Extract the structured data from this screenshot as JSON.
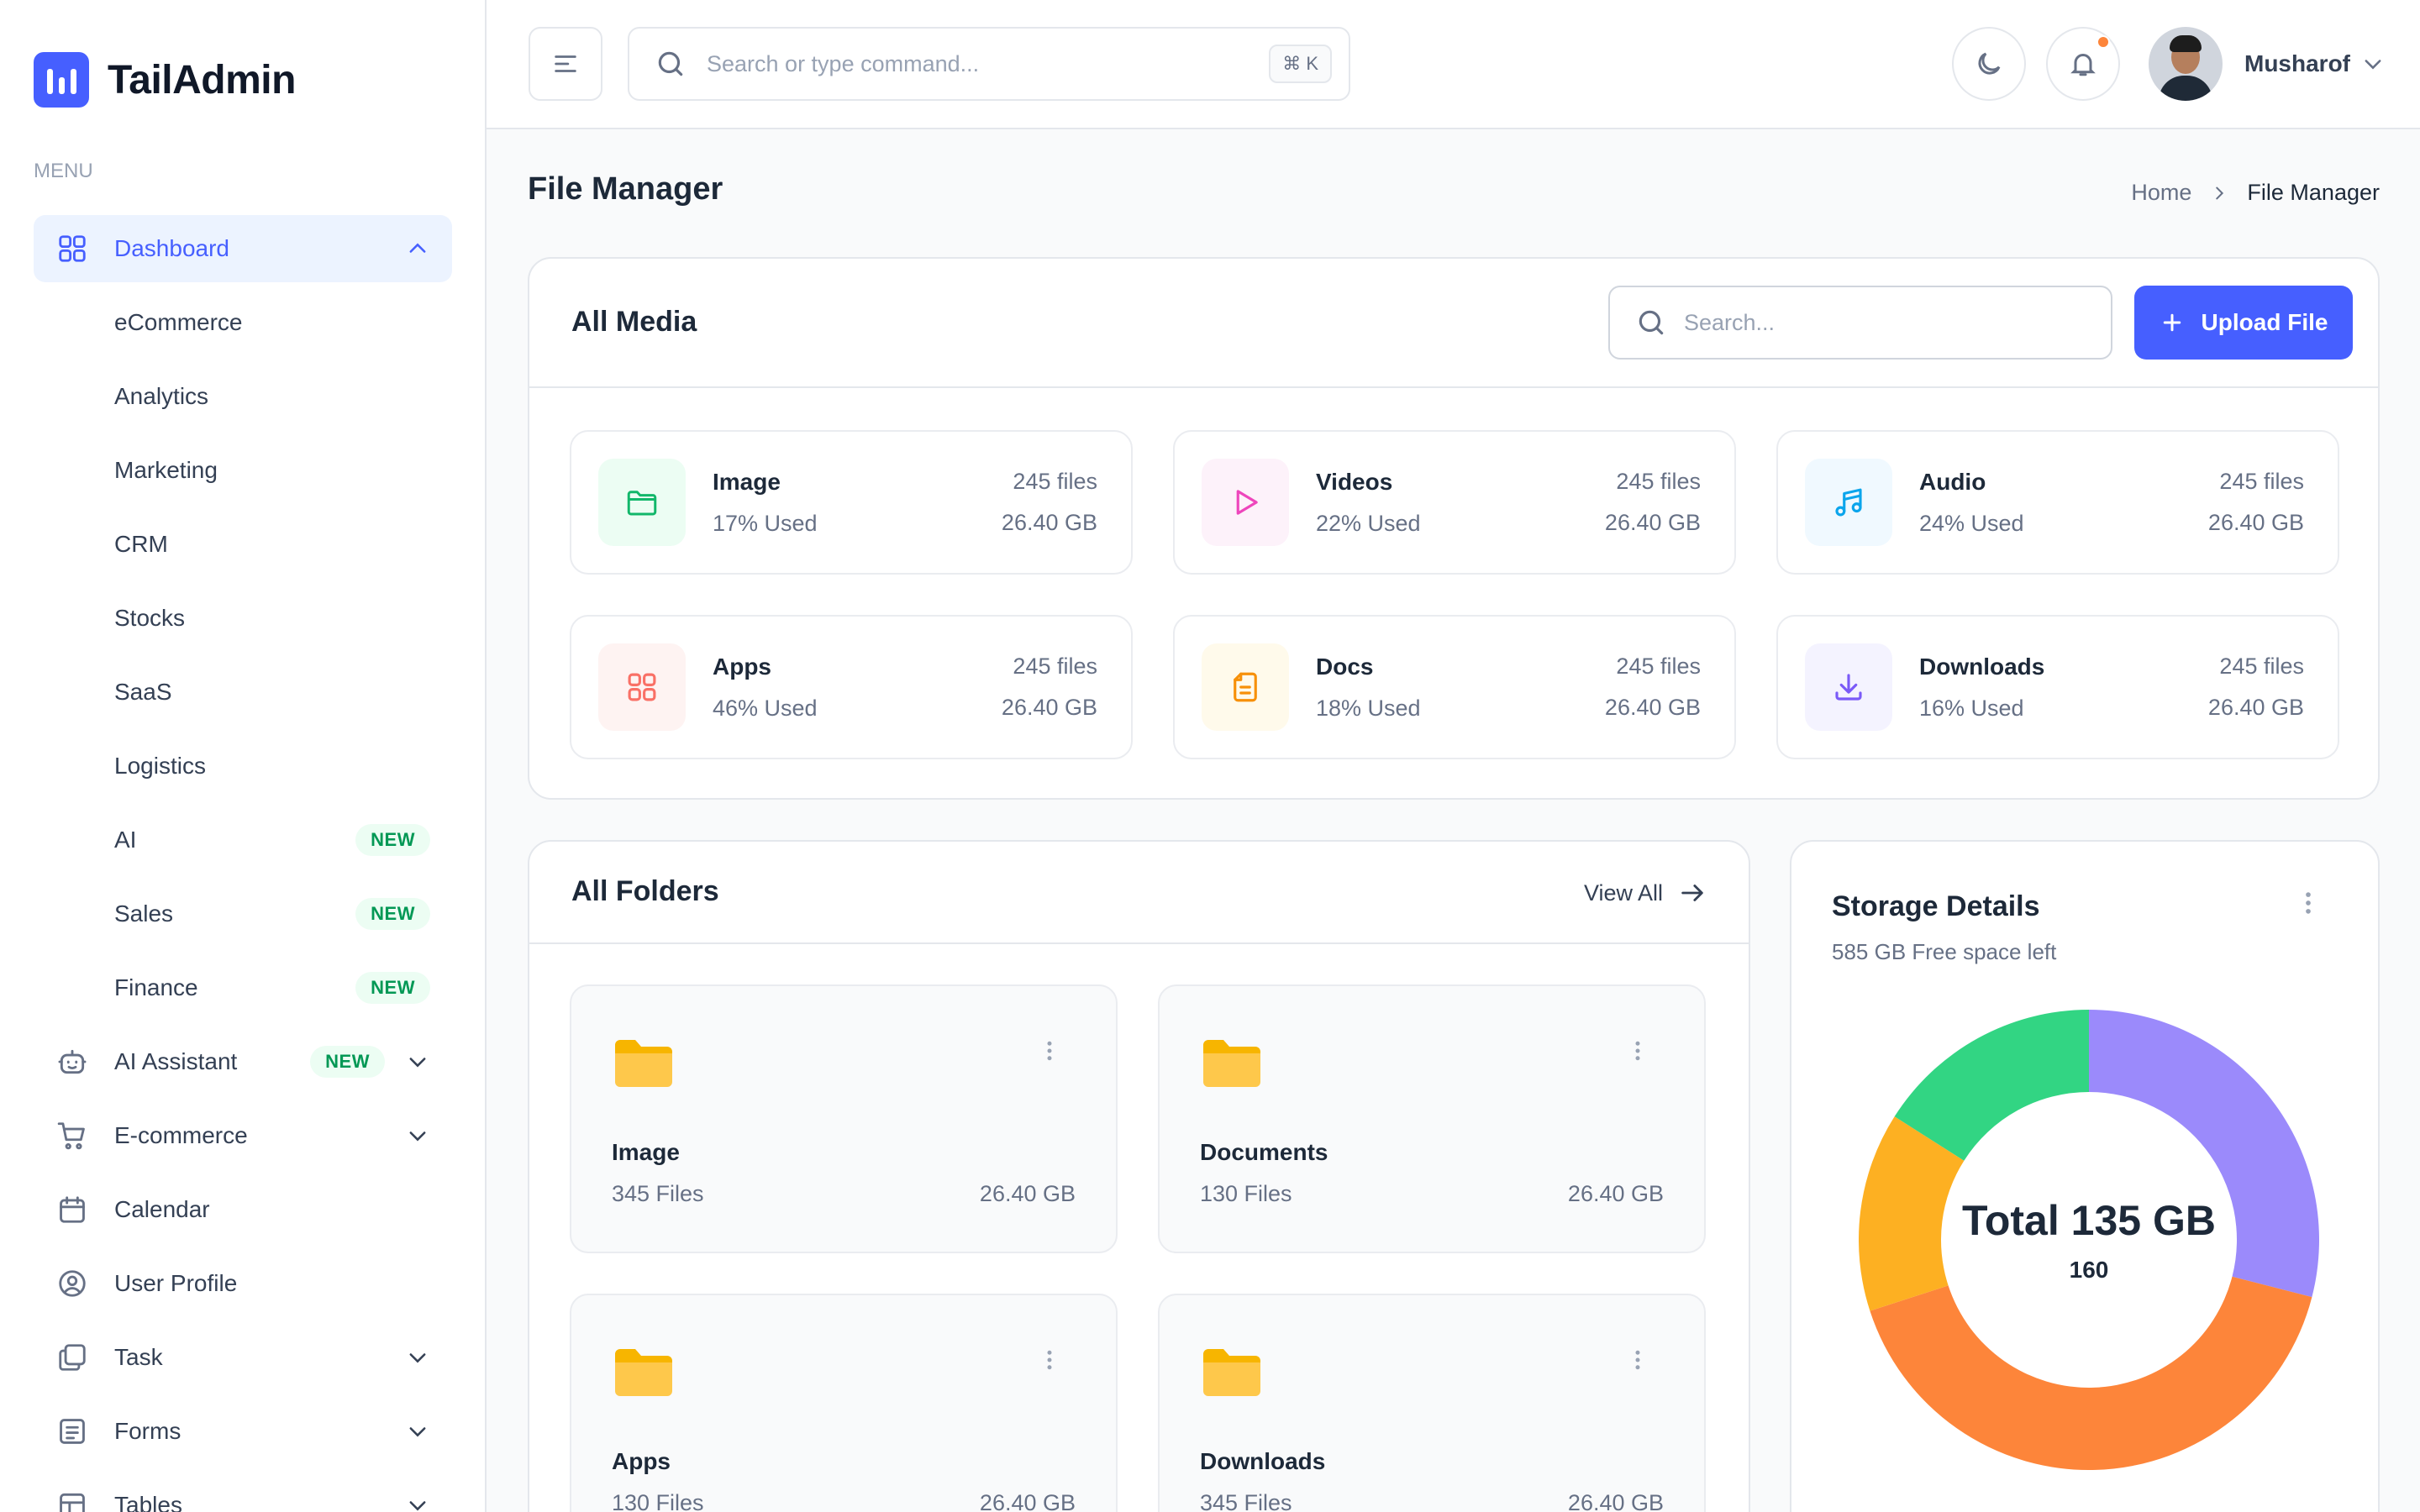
{
  "brand": {
    "name": "TailAdmin"
  },
  "sidebar": {
    "menu_label": "MENU",
    "dashboard": {
      "label": "Dashboard"
    },
    "dashboard_sub": [
      {
        "label": "eCommerce",
        "badge": ""
      },
      {
        "label": "Analytics",
        "badge": ""
      },
      {
        "label": "Marketing",
        "badge": ""
      },
      {
        "label": "CRM",
        "badge": ""
      },
      {
        "label": "Stocks",
        "badge": ""
      },
      {
        "label": "SaaS",
        "badge": ""
      },
      {
        "label": "Logistics",
        "badge": ""
      },
      {
        "label": "AI",
        "badge": "NEW"
      },
      {
        "label": "Sales",
        "badge": "NEW"
      },
      {
        "label": "Finance",
        "badge": "NEW"
      }
    ],
    "items": [
      {
        "label": "AI Assistant",
        "badge": "NEW",
        "icon": "robot-icon"
      },
      {
        "label": "E-commerce",
        "icon": "cart-icon"
      },
      {
        "label": "Calendar",
        "icon": "calendar-icon"
      },
      {
        "label": "User Profile",
        "icon": "user-circle-icon"
      },
      {
        "label": "Task",
        "icon": "task-icon"
      },
      {
        "label": "Forms",
        "icon": "forms-icon"
      },
      {
        "label": "Tables",
        "icon": "table-icon"
      }
    ]
  },
  "header": {
    "search_placeholder": "Search or type command...",
    "shortcut": "⌘ K",
    "user_name": "Musharof"
  },
  "page": {
    "title": "File Manager",
    "breadcrumb": {
      "home": "Home",
      "current": "File Manager"
    }
  },
  "media": {
    "title": "All Media",
    "search_placeholder": "Search...",
    "upload_label": "Upload File",
    "items": [
      {
        "name": "Image",
        "used": "17% Used",
        "files": "245 files",
        "size": "26.40 GB",
        "color": "#12b76a",
        "bg": "#ecfdf3",
        "icon": "folder-icon"
      },
      {
        "name": "Videos",
        "used": "22% Used",
        "files": "245 files",
        "size": "26.40 GB",
        "color": "#ee46bc",
        "bg": "#fdf2fa",
        "icon": "play-icon"
      },
      {
        "name": "Audio",
        "used": "24% Used",
        "files": "245 files",
        "size": "26.40 GB",
        "color": "#0ba5ec",
        "bg": "#f0f9ff",
        "icon": "music-icon"
      },
      {
        "name": "Apps",
        "used": "46% Used",
        "files": "245 files",
        "size": "26.40 GB",
        "color": "#f97066",
        "bg": "#fef3f2",
        "icon": "grid-icon"
      },
      {
        "name": "Docs",
        "used": "18% Used",
        "files": "245 files",
        "size": "26.40 GB",
        "color": "#f79009",
        "bg": "#fffaeb",
        "icon": "document-icon"
      },
      {
        "name": "Downloads",
        "used": "16% Used",
        "files": "245 files",
        "size": "26.40 GB",
        "color": "#7a5af8",
        "bg": "#f4f3ff",
        "icon": "download-icon"
      }
    ]
  },
  "folders": {
    "title": "All Folders",
    "view_all": "View All",
    "items": [
      {
        "name": "Image",
        "count": "345 Files",
        "size": "26.40 GB"
      },
      {
        "name": "Documents",
        "count": "130 Files",
        "size": "26.40 GB"
      },
      {
        "name": "Apps",
        "count": "130 Files",
        "size": "26.40 GB"
      },
      {
        "name": "Downloads",
        "count": "345 Files",
        "size": "26.40 GB"
      }
    ]
  },
  "storage": {
    "title": "Storage Details",
    "subtitle": "585 GB Free space left",
    "total_label": "Total 135 GB",
    "count_label": "160",
    "segments": [
      {
        "share": 0.29,
        "color": "#9b8afb"
      },
      {
        "share": 0.41,
        "color": "#fd853a"
      },
      {
        "share": 0.14,
        "color": "#fdb022"
      },
      {
        "share": 0.16,
        "color": "#32d583"
      }
    ]
  }
}
